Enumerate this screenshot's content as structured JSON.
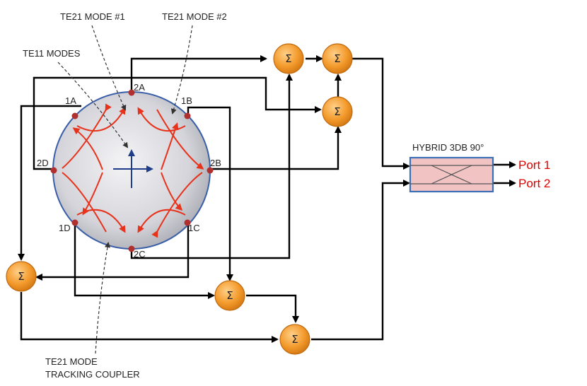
{
  "colors": {
    "wire": "#000000",
    "field_lines": "#e8331c",
    "polarization_arrow": "#1f3c88",
    "summer_fill": "#f39a2c",
    "hybrid_fill": "#f2c3c3",
    "hybrid_border": "#3b6fb6",
    "port_label": "#e00000",
    "port_dot": "#b03030"
  },
  "labels": {
    "te21_mode_1": "TE21 MODE #1",
    "te21_mode_2": "TE21 MODE #2",
    "te11_modes": "TE11 MODES",
    "te21_tracking_line1": "TE21 MODE",
    "te21_tracking_line2": "TRACKING COUPLER",
    "hybrid": "HYBRID 3DB 90°"
  },
  "coupler_ports": [
    "2A",
    "1B",
    "2B",
    "1C",
    "2C",
    "1D",
    "2D",
    "1A"
  ],
  "summer_symbol": "Σ",
  "outputs": {
    "port1": "Port 1",
    "port2": "Port 2"
  },
  "icons": {
    "summer": "sigma-summer-icon",
    "hybrid": "hybrid-crossover-icon",
    "polarization": "crosshair-arrow-icon"
  }
}
